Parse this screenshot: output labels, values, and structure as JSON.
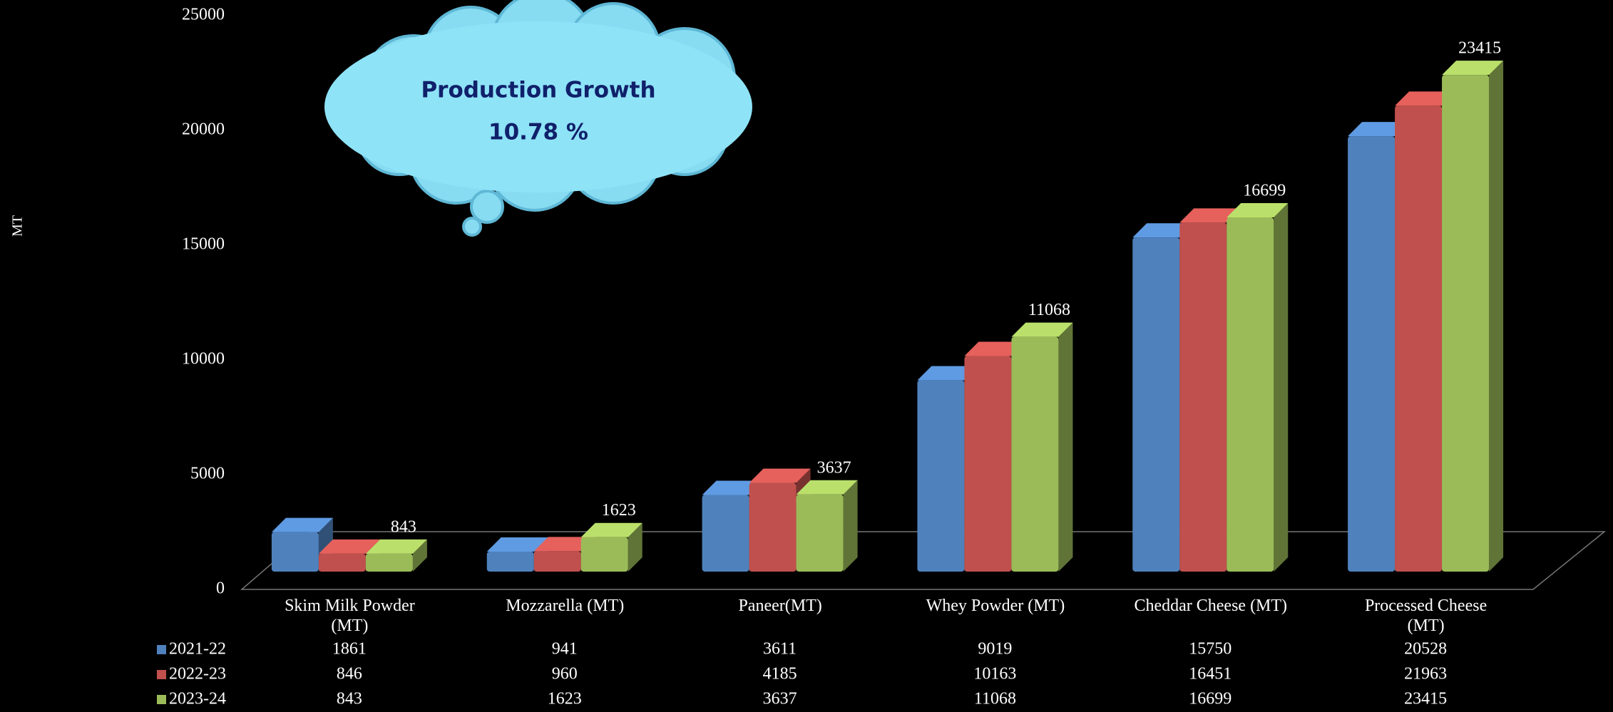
{
  "chart_data": {
    "type": "bar3d",
    "y_label": "MT",
    "categories": [
      "Skim Milk Powder (MT)",
      "Mozzarella (MT)",
      "Paneer(MT)",
      "Whey Powder (MT)",
      "Cheddar Cheese (MT)",
      "Processed Cheese (MT)"
    ],
    "series": [
      {
        "name": "2021-22",
        "color": "#4f81bd",
        "values": [
          1861,
          941,
          3611,
          9019,
          15750,
          20528
        ]
      },
      {
        "name": "2022-23",
        "color": "#c0504d",
        "values": [
          846,
          960,
          4185,
          10163,
          16451,
          21963
        ]
      },
      {
        "name": "2023-24",
        "color": "#9bbb59",
        "values": [
          843,
          1623,
          3637,
          11068,
          16699,
          23415
        ],
        "data_labels": true
      }
    ],
    "ylim": [
      0,
      25000
    ],
    "yticks": [
      0,
      5000,
      10000,
      15000,
      20000,
      25000
    ],
    "grid": false,
    "data_table": true,
    "annotation": {
      "title": "Production Growth",
      "value": "10.78 %"
    }
  }
}
